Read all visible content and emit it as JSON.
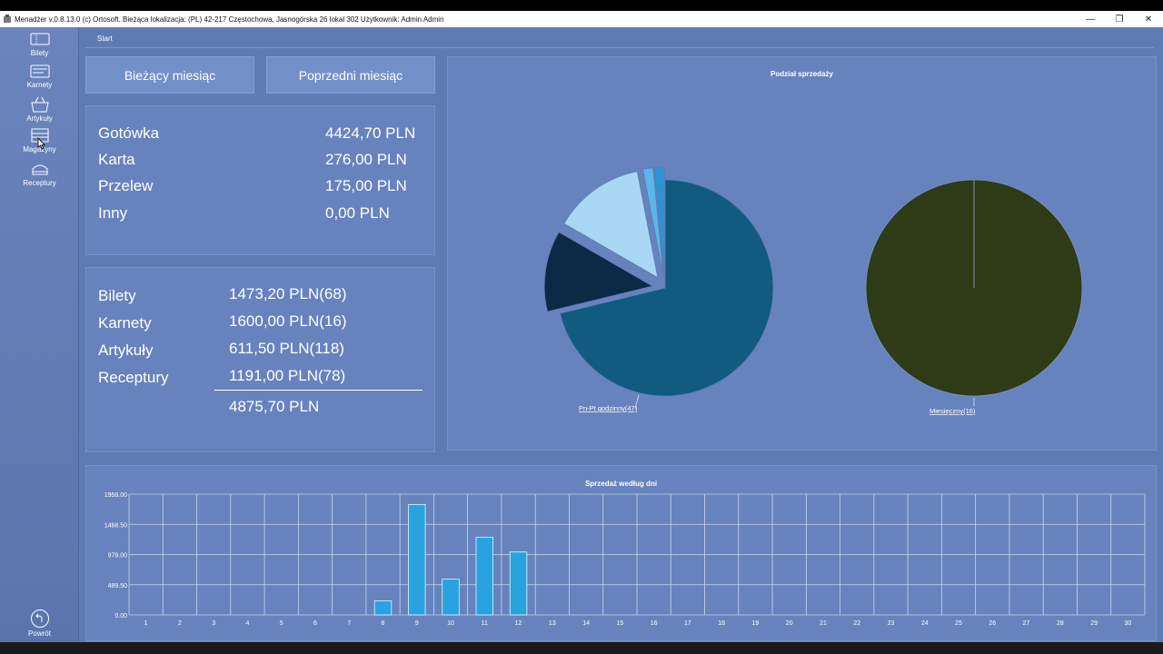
{
  "window": {
    "title": "Menadżer v.0.8.13.0 (c) Ortosoft. Bieżąca lokalizacja: (PL) 42-217 Częstochowa, Jasnogórska 26 lokal 302 Użytkownik: Admin Admin",
    "minimize": "—",
    "restore": "❐",
    "close": "✕"
  },
  "sidebar": {
    "items": [
      {
        "label": "Bilety",
        "icon": "ticket-icon"
      },
      {
        "label": "Karnety",
        "icon": "pass-card-icon"
      },
      {
        "label": "Artykuły",
        "icon": "basket-icon"
      },
      {
        "label": "Magazyny",
        "icon": "warehouse-icon"
      },
      {
        "label": "Receptury",
        "icon": "recipe-icon"
      }
    ],
    "back_label": "Powrót"
  },
  "breadcrumb": "Start",
  "tabs": {
    "current": "Bieżący miesiąc",
    "previous": "Poprzedni miesiąc"
  },
  "payments": [
    {
      "label": "Gotówka",
      "value": "4424,70 PLN"
    },
    {
      "label": "Karta",
      "value": "276,00 PLN"
    },
    {
      "label": "Przelew",
      "value": "175,00 PLN"
    },
    {
      "label": "Inny",
      "value": "0,00 PLN"
    }
  ],
  "categories": [
    {
      "label": "Bilety",
      "value": "1473,20 PLN(68)"
    },
    {
      "label": "Karnety",
      "value": "1600,00 PLN(16)"
    },
    {
      "label": "Artykuły",
      "value": "611,50 PLN(118)"
    },
    {
      "label": "Receptury",
      "value": "1191,00 PLN(78)"
    }
  ],
  "categories_total": "4875,70 PLN",
  "colors": {
    "background": "#5f7bb4",
    "panel": "#6683bd",
    "bar": "#29a3e0"
  },
  "chart_data": [
    {
      "type": "pie",
      "title": "Podział sprzedaży",
      "slices": [
        {
          "value": 47,
          "color": "#115a80",
          "explode": false
        },
        {
          "value": 8,
          "color": "#0a2a45",
          "explode": true
        },
        {
          "value": 9,
          "color": "#a9d8f5",
          "explode": true
        },
        {
          "value": 1,
          "color": "#5ab6ea",
          "explode": true
        },
        {
          "value": 1,
          "color": "#2b93d2",
          "explode": true
        }
      ],
      "start_angle_deg": 0,
      "labels": [
        {
          "text": "Pn-Pt godzinny(47)"
        }
      ]
    },
    {
      "type": "pie",
      "slices": [
        {
          "value": 16,
          "color": "#2d3c17"
        }
      ],
      "labels": [
        {
          "text": "Miesięczny(16)"
        }
      ]
    },
    {
      "type": "bar",
      "title": "Sprzedaż według dni",
      "categories": [
        "1",
        "2",
        "3",
        "4",
        "5",
        "6",
        "7",
        "8",
        "9",
        "10",
        "11",
        "12",
        "13",
        "14",
        "15",
        "16",
        "17",
        "18",
        "19",
        "20",
        "21",
        "22",
        "23",
        "24",
        "25",
        "26",
        "27",
        "28",
        "29",
        "30"
      ],
      "values": [
        0,
        0,
        0,
        0,
        0,
        0,
        0,
        230,
        1790,
        580,
        1260,
        1020,
        0,
        0,
        0,
        0,
        0,
        0,
        0,
        0,
        0,
        0,
        0,
        0,
        0,
        0,
        0,
        0,
        0,
        0
      ],
      "yticks": [
        "0.00",
        "489.50",
        "979.00",
        "1468.50",
        "1958.00"
      ],
      "ylim": [
        0,
        1958
      ]
    }
  ]
}
